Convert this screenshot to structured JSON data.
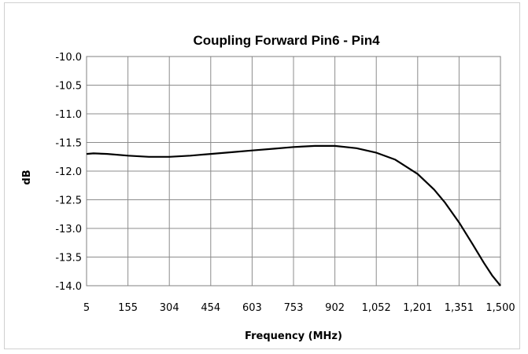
{
  "chart_data": {
    "type": "line",
    "title": "Coupling Forward Pin6 - Pin4",
    "xlabel": "Frequency (MHz)",
    "ylabel": "dB",
    "xlim": [
      5,
      1500
    ],
    "ylim": [
      -14.0,
      -10.0
    ],
    "x_ticks": [
      5,
      155,
      304,
      454,
      603,
      753,
      902,
      1052,
      1201,
      1351,
      1500
    ],
    "x_tick_labels": [
      "5",
      "155",
      "304",
      "454",
      "603",
      "753",
      "902",
      "1,052",
      "1,201",
      "1,351",
      "1,500"
    ],
    "y_ticks": [
      -10.0,
      -10.5,
      -11.0,
      -11.5,
      -12.0,
      -12.5,
      -13.0,
      -13.5,
      -14.0
    ],
    "y_tick_labels": [
      "-10.0",
      "-10.5",
      "-11.0",
      "-11.5",
      "-12.0",
      "-12.5",
      "-13.0",
      "-13.5",
      "-14.0"
    ],
    "grid": true,
    "series": [
      {
        "color": "#000000",
        "x": [
          5,
          30,
          80,
          155,
          230,
          304,
          380,
          454,
          530,
          603,
          680,
          753,
          830,
          902,
          980,
          1052,
          1120,
          1201,
          1260,
          1300,
          1351,
          1400,
          1440,
          1470,
          1500
        ],
        "y": [
          -11.7,
          -11.69,
          -11.7,
          -11.73,
          -11.75,
          -11.75,
          -11.73,
          -11.7,
          -11.67,
          -11.64,
          -11.61,
          -11.58,
          -11.56,
          -11.56,
          -11.6,
          -11.68,
          -11.8,
          -12.05,
          -12.32,
          -12.55,
          -12.9,
          -13.28,
          -13.6,
          -13.82,
          -14.0
        ]
      }
    ]
  }
}
